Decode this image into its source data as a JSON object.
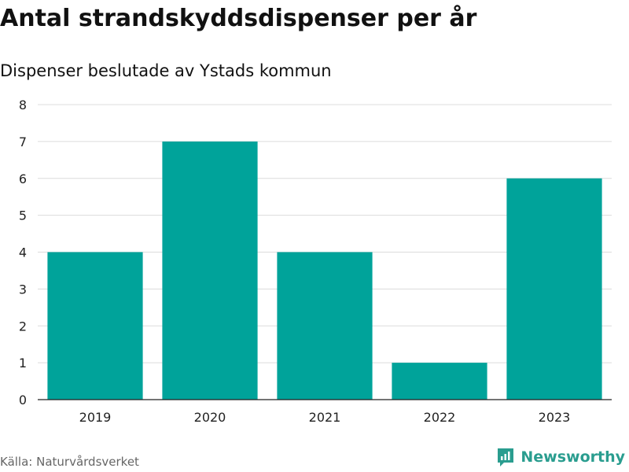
{
  "title": "Antal strandskyddsdispenser per år",
  "subtitle": "Dispenser beslutade av Ystads kommun",
  "source": "Källa: Naturvårdsverket",
  "brand": {
    "name": "Newsworthy",
    "color": "#2a9d8f"
  },
  "chart_data": {
    "type": "bar",
    "title": "Antal strandskyddsdispenser per år",
    "subtitle": "Dispenser beslutade av Ystads kommun",
    "categories": [
      "2019",
      "2020",
      "2021",
      "2022",
      "2023"
    ],
    "values": [
      4,
      7,
      4,
      1,
      6
    ],
    "ylim": [
      0,
      8
    ],
    "yticks": [
      0,
      1,
      2,
      3,
      4,
      5,
      6,
      7,
      8
    ],
    "grid": true,
    "bar_color": "#00a39a"
  }
}
